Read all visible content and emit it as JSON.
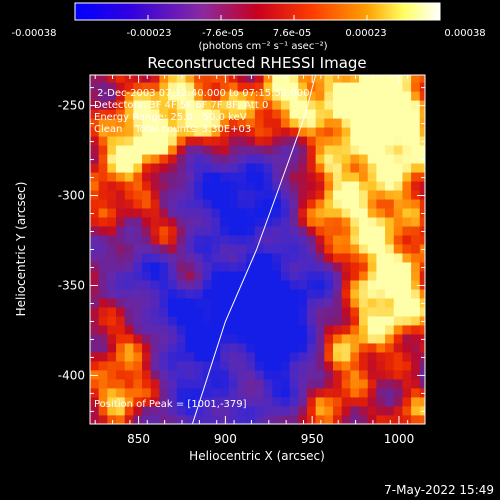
{
  "title": "Reconstructed RHESSI Image",
  "colorbar": {
    "tick_labels": [
      "-0.00038",
      "-0.00023",
      "-7.6e-05",
      "7.6e-05",
      "0.00023",
      "0.00038"
    ],
    "units": "(photons cm⁻² s⁻¹ asec⁻²)",
    "range": [
      -0.00038,
      0.00038
    ],
    "colors": [
      "#0000ff",
      "#5a00c8",
      "#8a2aa0",
      "#c8001e",
      "#ff5000",
      "#ffa000",
      "#ffff80",
      "#ffffff"
    ]
  },
  "axes": {
    "xlabel": "Heliocentric X (arcsec)",
    "ylabel": "Heliocentric Y (arcsec)",
    "xlim": [
      822,
      1015
    ],
    "ylim": [
      -427,
      -233
    ],
    "xticks": [
      850,
      900,
      950,
      1000
    ],
    "yticks": [
      -250,
      -300,
      -350,
      -400
    ]
  },
  "annotations": {
    "line1": " 2-Dec-2003 07:12:40.000 to 07:15:52.000",
    "line2": "Detectors: 3F 4F 5F 6F 7F 8F, Att 0",
    "line3": "Energy Range: 25.0 - 50.0 keV",
    "line4": "Clean    Total counts: 3.30E+03",
    "peak": "Position of Peak = [1001,-379]"
  },
  "timestamp": "7-May-2022 15:49",
  "limb": [
    [
      881,
      -427
    ],
    [
      900,
      -370
    ],
    [
      918,
      -330
    ],
    [
      933,
      -290
    ],
    [
      946,
      -255
    ],
    [
      952,
      -233
    ]
  ],
  "hotspots": [
    [
      870,
      -255,
      22,
      1.0
    ],
    [
      845,
      -275,
      14,
      0.8
    ],
    [
      900,
      -262,
      16,
      0.7
    ],
    [
      935,
      -245,
      14,
      0.9
    ],
    [
      975,
      -250,
      22,
      1.0
    ],
    [
      995,
      -240,
      14,
      0.9
    ],
    [
      1005,
      -275,
      18,
      0.9
    ],
    [
      960,
      -300,
      18,
      0.8
    ],
    [
      985,
      -330,
      22,
      0.9
    ],
    [
      1000,
      -360,
      16,
      0.9
    ],
    [
      968,
      -385,
      16,
      0.8
    ],
    [
      955,
      -420,
      14,
      0.7
    ],
    [
      910,
      -400,
      12,
      0.6
    ],
    [
      865,
      -320,
      12,
      0.6
    ],
    [
      850,
      -380,
      16,
      0.7
    ],
    [
      840,
      -410,
      12,
      0.8
    ],
    [
      880,
      -345,
      10,
      0.7
    ],
    [
      910,
      -330,
      10,
      0.5
    ],
    [
      830,
      -300,
      10,
      0.5
    ],
    [
      1010,
      -420,
      10,
      0.6
    ]
  ],
  "coldspots": [
    [
      915,
      -300,
      24,
      1.0
    ],
    [
      905,
      -355,
      26,
      1.0
    ],
    [
      870,
      -370,
      18,
      0.8
    ],
    [
      935,
      -370,
      18,
      0.9
    ],
    [
      890,
      -410,
      18,
      0.8
    ],
    [
      935,
      -405,
      16,
      0.8
    ],
    [
      885,
      -285,
      14,
      0.7
    ],
    [
      855,
      -340,
      12,
      0.6
    ],
    [
      960,
      -345,
      12,
      0.6
    ]
  ]
}
